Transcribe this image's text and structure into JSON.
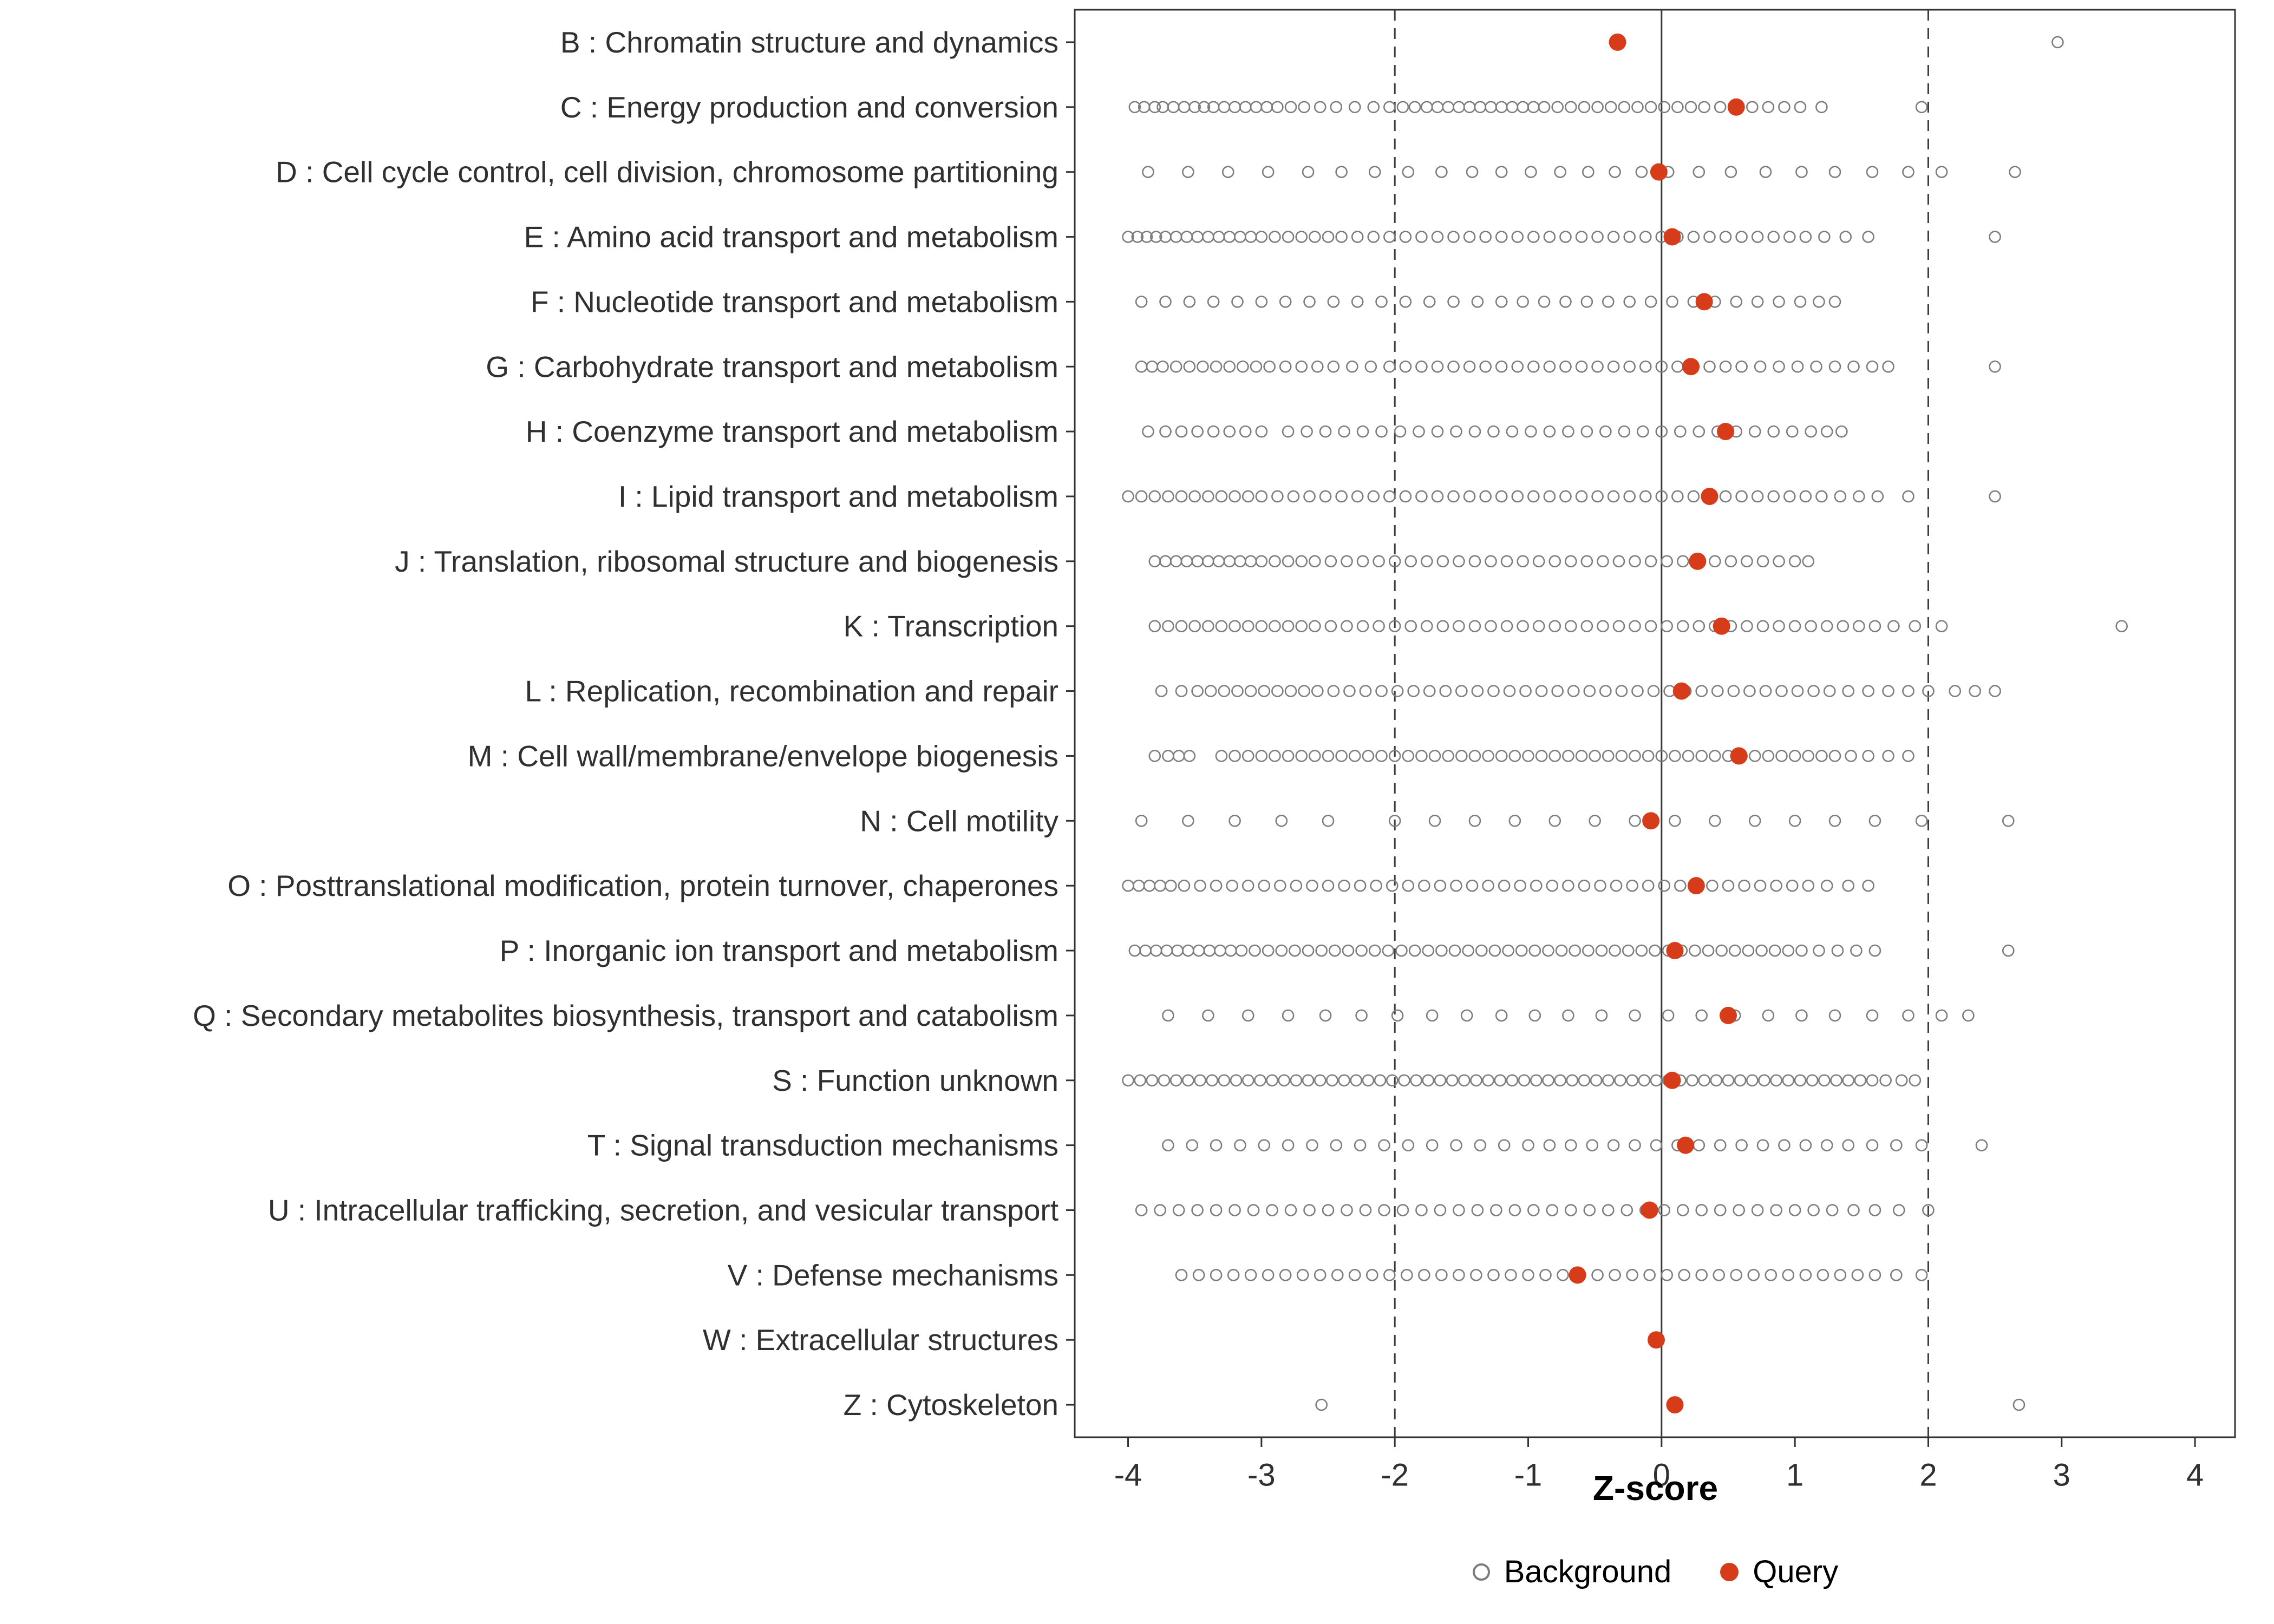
{
  "chart_data": {
    "type": "scatter",
    "subtype": "horizontal-strip-dotplot",
    "title": "",
    "xlabel": "Z-score",
    "ylabel": "",
    "xlim": [
      -4.4,
      4.3
    ],
    "x_ticks": [
      -4,
      -3,
      -2,
      -1,
      0,
      1,
      2,
      3,
      4
    ],
    "grid": "off",
    "reference_lines": {
      "solid": [
        0
      ],
      "dashed": [
        -2,
        2
      ]
    },
    "legend_position": "bottom",
    "legend": [
      {
        "name": "Background",
        "marker": "open-circle",
        "color": "#7d7d7d"
      },
      {
        "name": "Query",
        "marker": "filled-circle",
        "color": "#d63b1a"
      }
    ],
    "colors": {
      "background_stroke": "#7d7d7d",
      "query_fill": "#d63b1a",
      "panel_border": "#333333",
      "axis_text": "#303030",
      "refline": "#3a3a3a"
    },
    "categories": [
      "B : Chromatin structure and dynamics",
      "C : Energy production and conversion",
      "D : Cell cycle control, cell division, chromosome partitioning",
      "E : Amino acid transport and metabolism",
      "F : Nucleotide transport and metabolism",
      "G : Carbohydrate transport and metabolism",
      "H : Coenzyme transport and metabolism",
      "I : Lipid transport and metabolism",
      "J : Translation, ribosomal structure and biogenesis",
      "K : Transcription",
      "L : Replication, recombination and repair",
      "M : Cell wall/membrane/envelope biogenesis",
      "N : Cell motility",
      "O : Posttranslational modification, protein turnover, chaperones",
      "P : Inorganic ion transport and metabolism",
      "Q : Secondary metabolites biosynthesis, transport and catabolism",
      "S : Function unknown",
      "T : Signal transduction mechanisms",
      "U : Intracellular trafficking, secretion, and vesicular transport",
      "V : Defense mechanisms",
      "W : Extracellular structures",
      "Z : Cytoskeleton"
    ],
    "query": [
      -0.33,
      0.56,
      -0.02,
      0.08,
      0.32,
      0.22,
      0.48,
      0.36,
      0.27,
      0.45,
      0.15,
      0.58,
      -0.08,
      0.26,
      0.1,
      0.5,
      0.08,
      0.18,
      -0.09,
      -0.63,
      -0.04,
      0.1
    ],
    "background": [
      [
        2.97
      ],
      [
        -3.95,
        -3.88,
        -3.8,
        -3.74,
        -3.66,
        -3.58,
        -3.5,
        -3.43,
        -3.36,
        -3.28,
        -3.2,
        -3.12,
        -3.04,
        -2.96,
        -2.88,
        -2.78,
        -2.68,
        -2.56,
        -2.44,
        -2.3,
        -2.16,
        -2.04,
        -1.94,
        -1.85,
        -1.76,
        -1.68,
        -1.6,
        -1.52,
        -1.44,
        -1.36,
        -1.28,
        -1.2,
        -1.12,
        -1.04,
        -0.96,
        -0.88,
        -0.78,
        -0.68,
        -0.58,
        -0.48,
        -0.38,
        -0.28,
        -0.18,
        -0.08,
        0.02,
        0.12,
        0.22,
        0.32,
        0.44,
        0.56,
        0.68,
        0.8,
        0.92,
        1.04,
        1.2,
        1.95
      ],
      [
        -3.85,
        -3.55,
        -3.25,
        -2.95,
        -2.65,
        -2.4,
        -2.15,
        -1.9,
        -1.65,
        -1.42,
        -1.2,
        -0.98,
        -0.76,
        -0.55,
        -0.35,
        -0.15,
        0.05,
        0.28,
        0.52,
        0.78,
        1.05,
        1.3,
        1.58,
        1.85,
        2.1,
        2.65
      ],
      [
        -4.0,
        -3.93,
        -3.86,
        -3.79,
        -3.72,
        -3.64,
        -3.56,
        -3.48,
        -3.4,
        -3.32,
        -3.24,
        -3.16,
        -3.08,
        -3.0,
        -2.9,
        -2.8,
        -2.7,
        -2.6,
        -2.5,
        -2.4,
        -2.28,
        -2.16,
        -2.04,
        -1.92,
        -1.8,
        -1.68,
        -1.56,
        -1.44,
        -1.32,
        -1.2,
        -1.08,
        -0.96,
        -0.84,
        -0.72,
        -0.6,
        -0.48,
        -0.36,
        -0.24,
        -0.12,
        0.0,
        0.12,
        0.24,
        0.36,
        0.48,
        0.6,
        0.72,
        0.84,
        0.96,
        1.08,
        1.22,
        1.38,
        1.55,
        2.5
      ],
      [
        -3.9,
        -3.72,
        -3.54,
        -3.36,
        -3.18,
        -3.0,
        -2.82,
        -2.64,
        -2.46,
        -2.28,
        -2.1,
        -1.92,
        -1.74,
        -1.56,
        -1.38,
        -1.2,
        -1.04,
        -0.88,
        -0.72,
        -0.56,
        -0.4,
        -0.24,
        -0.08,
        0.08,
        0.24,
        0.4,
        0.56,
        0.72,
        0.88,
        1.04,
        1.18,
        1.3
      ],
      [
        -3.9,
        -3.82,
        -3.74,
        -3.64,
        -3.54,
        -3.44,
        -3.34,
        -3.24,
        -3.14,
        -3.04,
        -2.94,
        -2.82,
        -2.7,
        -2.58,
        -2.46,
        -2.32,
        -2.18,
        -2.04,
        -1.92,
        -1.8,
        -1.68,
        -1.56,
        -1.44,
        -1.32,
        -1.2,
        -1.08,
        -0.96,
        -0.84,
        -0.72,
        -0.6,
        -0.48,
        -0.36,
        -0.24,
        -0.12,
        0.0,
        0.12,
        0.24,
        0.36,
        0.48,
        0.6,
        0.74,
        0.88,
        1.02,
        1.16,
        1.3,
        1.44,
        1.58,
        1.7,
        2.5
      ],
      [
        -3.85,
        -3.72,
        -3.6,
        -3.48,
        -3.36,
        -3.24,
        -3.12,
        -3.0,
        -2.8,
        -2.66,
        -2.52,
        -2.38,
        -2.24,
        -2.1,
        -1.96,
        -1.82,
        -1.68,
        -1.54,
        -1.4,
        -1.26,
        -1.12,
        -0.98,
        -0.84,
        -0.7,
        -0.56,
        -0.42,
        -0.28,
        -0.14,
        0.0,
        0.14,
        0.28,
        0.42,
        0.56,
        0.7,
        0.84,
        0.98,
        1.12,
        1.24,
        1.35
      ],
      [
        -4.0,
        -3.9,
        -3.8,
        -3.7,
        -3.6,
        -3.5,
        -3.4,
        -3.3,
        -3.2,
        -3.1,
        -3.0,
        -2.88,
        -2.76,
        -2.64,
        -2.52,
        -2.4,
        -2.28,
        -2.16,
        -2.04,
        -1.92,
        -1.8,
        -1.68,
        -1.56,
        -1.44,
        -1.32,
        -1.2,
        -1.08,
        -0.96,
        -0.84,
        -0.72,
        -0.6,
        -0.48,
        -0.36,
        -0.24,
        -0.12,
        0.0,
        0.12,
        0.24,
        0.36,
        0.48,
        0.6,
        0.72,
        0.84,
        0.96,
        1.08,
        1.2,
        1.34,
        1.48,
        1.62,
        1.85,
        2.5
      ],
      [
        -3.8,
        -3.72,
        -3.64,
        -3.56,
        -3.48,
        -3.4,
        -3.32,
        -3.24,
        -3.16,
        -3.08,
        -3.0,
        -2.9,
        -2.8,
        -2.7,
        -2.6,
        -2.48,
        -2.36,
        -2.24,
        -2.12,
        -2.0,
        -1.88,
        -1.76,
        -1.64,
        -1.52,
        -1.4,
        -1.28,
        -1.16,
        -1.04,
        -0.92,
        -0.8,
        -0.68,
        -0.56,
        -0.44,
        -0.32,
        -0.2,
        -0.08,
        0.04,
        0.16,
        0.28,
        0.4,
        0.52,
        0.64,
        0.76,
        0.88,
        1.0,
        1.1
      ],
      [
        -3.8,
        -3.7,
        -3.6,
        -3.5,
        -3.4,
        -3.3,
        -3.2,
        -3.1,
        -3.0,
        -2.9,
        -2.8,
        -2.7,
        -2.6,
        -2.48,
        -2.36,
        -2.24,
        -2.12,
        -2.0,
        -1.88,
        -1.76,
        -1.64,
        -1.52,
        -1.4,
        -1.28,
        -1.16,
        -1.04,
        -0.92,
        -0.8,
        -0.68,
        -0.56,
        -0.44,
        -0.32,
        -0.2,
        -0.08,
        0.04,
        0.16,
        0.28,
        0.4,
        0.52,
        0.64,
        0.76,
        0.88,
        1.0,
        1.12,
        1.24,
        1.36,
        1.48,
        1.6,
        1.74,
        1.9,
        2.1,
        3.45
      ],
      [
        -3.75,
        -3.6,
        -3.48,
        -3.38,
        -3.28,
        -3.18,
        -3.08,
        -2.98,
        -2.88,
        -2.78,
        -2.68,
        -2.58,
        -2.46,
        -2.34,
        -2.22,
        -2.1,
        -1.98,
        -1.86,
        -1.74,
        -1.62,
        -1.5,
        -1.38,
        -1.26,
        -1.14,
        -1.02,
        -0.9,
        -0.78,
        -0.66,
        -0.54,
        -0.42,
        -0.3,
        -0.18,
        -0.06,
        0.06,
        0.18,
        0.3,
        0.42,
        0.54,
        0.66,
        0.78,
        0.9,
        1.02,
        1.14,
        1.26,
        1.4,
        1.55,
        1.7,
        1.85,
        2.0,
        2.2,
        2.35,
        2.5
      ],
      [
        -3.8,
        -3.7,
        -3.62,
        -3.54,
        -3.3,
        -3.2,
        -3.1,
        -3.0,
        -2.9,
        -2.8,
        -2.7,
        -2.6,
        -2.5,
        -2.4,
        -2.3,
        -2.2,
        -2.1,
        -2.0,
        -1.9,
        -1.8,
        -1.7,
        -1.6,
        -1.5,
        -1.4,
        -1.3,
        -1.2,
        -1.1,
        -1.0,
        -0.9,
        -0.8,
        -0.7,
        -0.6,
        -0.5,
        -0.4,
        -0.3,
        -0.2,
        -0.1,
        0.0,
        0.1,
        0.2,
        0.3,
        0.4,
        0.5,
        0.6,
        0.7,
        0.8,
        0.9,
        1.0,
        1.1,
        1.2,
        1.3,
        1.42,
        1.55,
        1.7,
        1.85
      ],
      [
        -3.9,
        -3.55,
        -3.2,
        -2.85,
        -2.5,
        -2.0,
        -1.7,
        -1.4,
        -1.1,
        -0.8,
        -0.5,
        -0.2,
        0.1,
        0.4,
        0.7,
        1.0,
        1.3,
        1.6,
        1.95,
        2.6
      ],
      [
        -4.0,
        -3.92,
        -3.84,
        -3.76,
        -3.68,
        -3.58,
        -3.46,
        -3.34,
        -3.22,
        -3.1,
        -2.98,
        -2.86,
        -2.74,
        -2.62,
        -2.5,
        -2.38,
        -2.26,
        -2.14,
        -2.02,
        -1.9,
        -1.78,
        -1.66,
        -1.54,
        -1.42,
        -1.3,
        -1.18,
        -1.06,
        -0.94,
        -0.82,
        -0.7,
        -0.58,
        -0.46,
        -0.34,
        -0.22,
        -0.1,
        0.02,
        0.14,
        0.26,
        0.38,
        0.5,
        0.62,
        0.74,
        0.86,
        0.98,
        1.1,
        1.24,
        1.4,
        1.55
      ],
      [
        -3.95,
        -3.87,
        -3.79,
        -3.71,
        -3.63,
        -3.55,
        -3.47,
        -3.39,
        -3.31,
        -3.23,
        -3.15,
        -3.05,
        -2.95,
        -2.85,
        -2.75,
        -2.65,
        -2.55,
        -2.45,
        -2.35,
        -2.25,
        -2.15,
        -2.05,
        -1.95,
        -1.85,
        -1.75,
        -1.65,
        -1.55,
        -1.45,
        -1.35,
        -1.25,
        -1.15,
        -1.05,
        -0.95,
        -0.85,
        -0.75,
        -0.65,
        -0.55,
        -0.45,
        -0.35,
        -0.25,
        -0.15,
        -0.05,
        0.05,
        0.15,
        0.25,
        0.35,
        0.45,
        0.55,
        0.65,
        0.75,
        0.85,
        0.95,
        1.05,
        1.18,
        1.32,
        1.46,
        1.6,
        2.6
      ],
      [
        -3.7,
        -3.4,
        -3.1,
        -2.8,
        -2.52,
        -2.25,
        -1.98,
        -1.72,
        -1.46,
        -1.2,
        -0.95,
        -0.7,
        -0.45,
        -0.2,
        0.05,
        0.3,
        0.55,
        0.8,
        1.05,
        1.3,
        1.58,
        1.85,
        2.1,
        2.3
      ],
      [
        -4.0,
        -3.91,
        -3.82,
        -3.73,
        -3.64,
        -3.55,
        -3.46,
        -3.37,
        -3.28,
        -3.19,
        -3.1,
        -3.01,
        -2.92,
        -2.83,
        -2.74,
        -2.65,
        -2.56,
        -2.47,
        -2.38,
        -2.29,
        -2.2,
        -2.11,
        -2.02,
        -1.93,
        -1.84,
        -1.75,
        -1.66,
        -1.57,
        -1.48,
        -1.39,
        -1.3,
        -1.21,
        -1.12,
        -1.03,
        -0.94,
        -0.85,
        -0.76,
        -0.67,
        -0.58,
        -0.49,
        -0.4,
        -0.31,
        -0.22,
        -0.13,
        -0.04,
        0.05,
        0.14,
        0.23,
        0.32,
        0.41,
        0.5,
        0.59,
        0.68,
        0.77,
        0.86,
        0.95,
        1.04,
        1.13,
        1.22,
        1.31,
        1.4,
        1.49,
        1.58,
        1.68,
        1.8,
        1.9
      ],
      [
        -3.7,
        -3.52,
        -3.34,
        -3.16,
        -2.98,
        -2.8,
        -2.62,
        -2.44,
        -2.26,
        -2.08,
        -1.9,
        -1.72,
        -1.54,
        -1.36,
        -1.18,
        -1.0,
        -0.84,
        -0.68,
        -0.52,
        -0.36,
        -0.2,
        -0.04,
        0.12,
        0.28,
        0.44,
        0.6,
        0.76,
        0.92,
        1.08,
        1.24,
        1.4,
        1.58,
        1.76,
        1.95,
        2.4
      ],
      [
        -3.9,
        -3.76,
        -3.62,
        -3.48,
        -3.34,
        -3.2,
        -3.06,
        -2.92,
        -2.78,
        -2.64,
        -2.5,
        -2.36,
        -2.22,
        -2.08,
        -1.94,
        -1.8,
        -1.66,
        -1.52,
        -1.38,
        -1.24,
        -1.1,
        -0.96,
        -0.82,
        -0.68,
        -0.54,
        -0.4,
        -0.26,
        -0.12,
        0.02,
        0.16,
        0.3,
        0.44,
        0.58,
        0.72,
        0.86,
        1.0,
        1.14,
        1.28,
        1.44,
        1.6,
        1.78,
        2.0
      ],
      [
        -3.6,
        -3.47,
        -3.34,
        -3.21,
        -3.08,
        -2.95,
        -2.82,
        -2.69,
        -2.56,
        -2.43,
        -2.3,
        -2.17,
        -2.04,
        -1.91,
        -1.78,
        -1.65,
        -1.52,
        -1.39,
        -1.26,
        -1.13,
        -1.0,
        -0.87,
        -0.74,
        -0.61,
        -0.48,
        -0.35,
        -0.22,
        -0.09,
        0.04,
        0.17,
        0.3,
        0.43,
        0.56,
        0.69,
        0.82,
        0.95,
        1.08,
        1.21,
        1.34,
        1.47,
        1.6,
        1.76,
        1.95
      ],
      [],
      [
        -2.55,
        2.68
      ]
    ]
  }
}
